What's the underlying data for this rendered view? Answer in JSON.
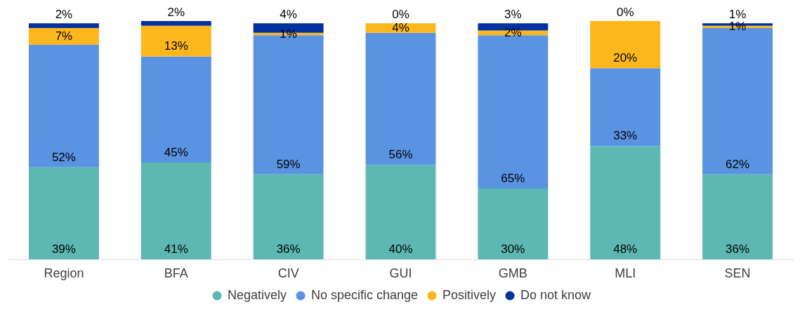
{
  "chart_data": {
    "type": "bar",
    "stacked": true,
    "legend": "bottom",
    "categories": [
      "Region",
      "BFA",
      "CIV",
      "GUI",
      "GMB",
      "MLI",
      "SEN"
    ],
    "series": [
      {
        "name": "Negatively",
        "color": "#5db8b3",
        "values": [
          39,
          41,
          36,
          40,
          30,
          48,
          36
        ],
        "value_labels": [
          "39%",
          "41%",
          "36%",
          "40%",
          "30%",
          "48%",
          "36%"
        ]
      },
      {
        "name": "No specific change",
        "color": "#5b93e3",
        "values": [
          52,
          45,
          59,
          56,
          65,
          33,
          62
        ],
        "value_labels": [
          "52%",
          "45%",
          "59%",
          "56%",
          "65%",
          "33%",
          "62%"
        ]
      },
      {
        "name": "Positively",
        "color": "#fdb71d",
        "values": [
          7,
          13,
          1,
          4,
          2,
          20,
          1
        ],
        "value_labels": [
          "7%",
          "13%",
          "1%",
          "4%",
          "2%",
          "20%",
          "1%"
        ]
      },
      {
        "name": "Do not know",
        "color": "#0033a0",
        "values": [
          2,
          2,
          4,
          0,
          3,
          0,
          1
        ],
        "value_labels": [
          "2%",
          "2%",
          "4%",
          "0%",
          "3%",
          "0%",
          "1%"
        ]
      }
    ]
  }
}
